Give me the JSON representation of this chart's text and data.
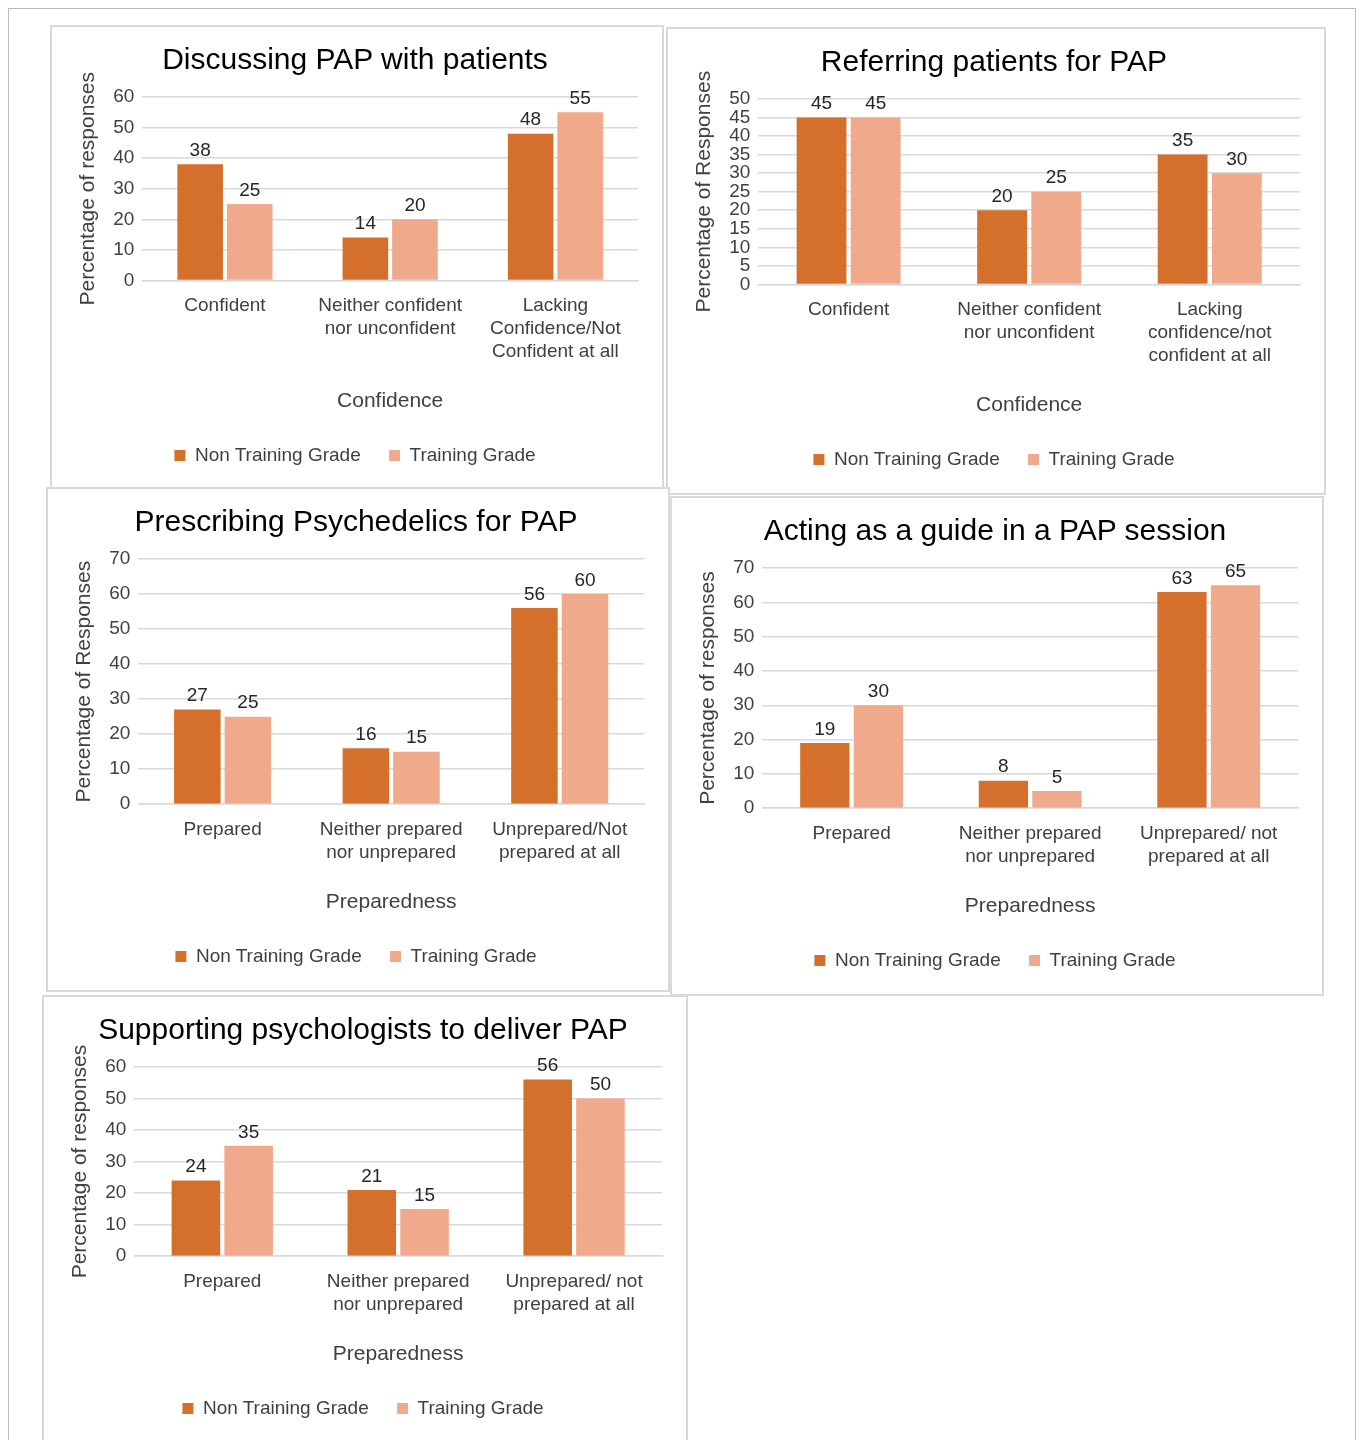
{
  "chart_data": [
    {
      "type": "bar",
      "title": "Discussing PAP with patients",
      "xlabel": "Confidence",
      "ylabel": "Percentage of responses",
      "categories": [
        "Confident",
        "Neither confident nor unconfident",
        "Lacking Confidence/Not Confident at all"
      ],
      "series": [
        {
          "name": "Non Training Grade",
          "color": "#d4702c",
          "values": [
            38,
            14,
            48
          ]
        },
        {
          "name": "Training Grade",
          "color": "#f0a98a",
          "values": [
            25,
            20,
            55
          ]
        }
      ],
      "ylim": [
        0,
        60
      ],
      "yticks": [
        0,
        10,
        20,
        30,
        40,
        50,
        60
      ],
      "grid": "y",
      "legend": "bottom",
      "data_labels": true
    },
    {
      "type": "bar",
      "title": "Referring patients for PAP",
      "xlabel": "Confidence",
      "ylabel": "Percentage of Responses",
      "categories": [
        "Confident",
        "Neither confident nor unconfident",
        "Lacking confidence/not confident at all"
      ],
      "series": [
        {
          "name": "Non Training Grade",
          "color": "#d4702c",
          "values": [
            45,
            20,
            35
          ]
        },
        {
          "name": "Training Grade",
          "color": "#f0a98a",
          "values": [
            45,
            25,
            30
          ]
        }
      ],
      "ylim": [
        0,
        50
      ],
      "yticks": [
        0,
        5,
        10,
        15,
        20,
        25,
        30,
        35,
        40,
        45,
        50
      ],
      "grid": "y",
      "legend": "bottom",
      "data_labels": true
    },
    {
      "type": "bar",
      "title": "Prescribing Psychedelics for PAP",
      "xlabel": "Preparedness",
      "ylabel": "Percentage of Responses",
      "categories": [
        "Prepared",
        "Neither prepared nor unprepared",
        "Unprepared/Not prepared at all"
      ],
      "series": [
        {
          "name": "Non Training Grade",
          "color": "#d4702c",
          "values": [
            27,
            16,
            56
          ]
        },
        {
          "name": "Training Grade",
          "color": "#f0a98a",
          "values": [
            25,
            15,
            60
          ]
        }
      ],
      "ylim": [
        0,
        70
      ],
      "yticks": [
        0,
        10,
        20,
        30,
        40,
        50,
        60,
        70
      ],
      "grid": "y",
      "legend": "bottom",
      "data_labels": true
    },
    {
      "type": "bar",
      "title": "Acting as a guide in a PAP session",
      "xlabel": "Preparedness",
      "ylabel": "Percentage of responses",
      "categories": [
        "Prepared",
        "Neither prepared nor unprepared",
        "Unprepared/ not prepared at all"
      ],
      "series": [
        {
          "name": "Non Training Grade",
          "color": "#d4702c",
          "values": [
            19,
            8,
            63
          ]
        },
        {
          "name": "Training Grade",
          "color": "#f0a98a",
          "values": [
            30,
            5,
            65
          ]
        }
      ],
      "ylim": [
        0,
        70
      ],
      "yticks": [
        0,
        10,
        20,
        30,
        40,
        50,
        60,
        70
      ],
      "grid": "y",
      "legend": "bottom",
      "data_labels": true
    },
    {
      "type": "bar",
      "title": "Supporting psychologists to deliver PAP",
      "xlabel": "Preparedness",
      "ylabel": "Percentage of responses",
      "categories": [
        "Prepared",
        "Neither prepared nor unprepared",
        "Unprepared/ not prepared at all"
      ],
      "series": [
        {
          "name": "Non Training Grade",
          "color": "#d4702c",
          "values": [
            24,
            21,
            56
          ]
        },
        {
          "name": "Training Grade",
          "color": "#f0a98a",
          "values": [
            35,
            15,
            50
          ]
        }
      ],
      "ylim": [
        0,
        60
      ],
      "yticks": [
        0,
        10,
        20,
        30,
        40,
        50,
        60
      ],
      "grid": "y",
      "legend": "bottom",
      "data_labels": true
    }
  ]
}
